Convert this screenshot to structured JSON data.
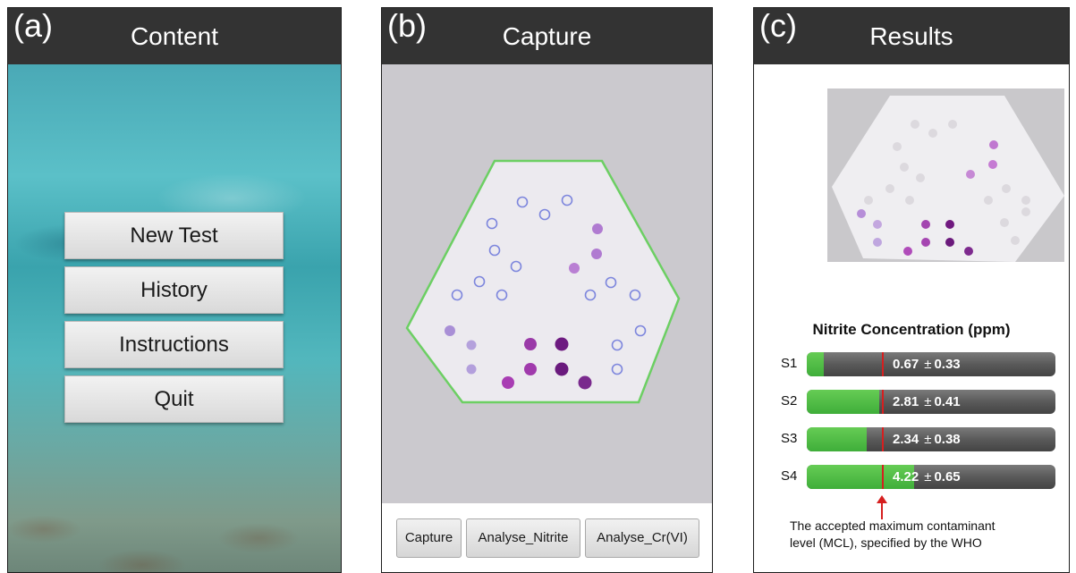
{
  "panels": {
    "a": {
      "letter": "(a)",
      "title": "Content",
      "buttons": [
        "New Test",
        "History",
        "Instructions",
        "Quit"
      ]
    },
    "b": {
      "letter": "(b)",
      "title": "Capture",
      "buttons": [
        "Capture",
        "Analyse_Nitrite",
        "Analyse_Cr(VI)"
      ]
    },
    "c": {
      "letter": "(c)",
      "title": "Results",
      "concentration_title": "Nitrite Concentration (ppm)",
      "rows": [
        {
          "label": "S1",
          "value": "0.67",
          "error": "0.33",
          "fraction": 0.07
        },
        {
          "label": "S2",
          "value": "2.81",
          "error": "0.41",
          "fraction": 0.29
        },
        {
          "label": "S3",
          "value": "2.34",
          "error": "0.38",
          "fraction": 0.24
        },
        {
          "label": "S4",
          "value": "4.22",
          "error": "0.65",
          "fraction": 0.43
        }
      ],
      "pm_symbol": "±",
      "mcl_note_line1": "The accepted maximum contaminant",
      "mcl_note_line2": "level (MCL), specified by the WHO"
    }
  },
  "colors": {
    "titlebar": "#333333",
    "bar_green": "#4fbd44",
    "mcl_red": "#d61f1f",
    "ring_blue": "#6f7fd9",
    "spot_purple": "#7a1f86"
  },
  "icons": [
    "panel-letter",
    "red-arrow-up-icon"
  ]
}
